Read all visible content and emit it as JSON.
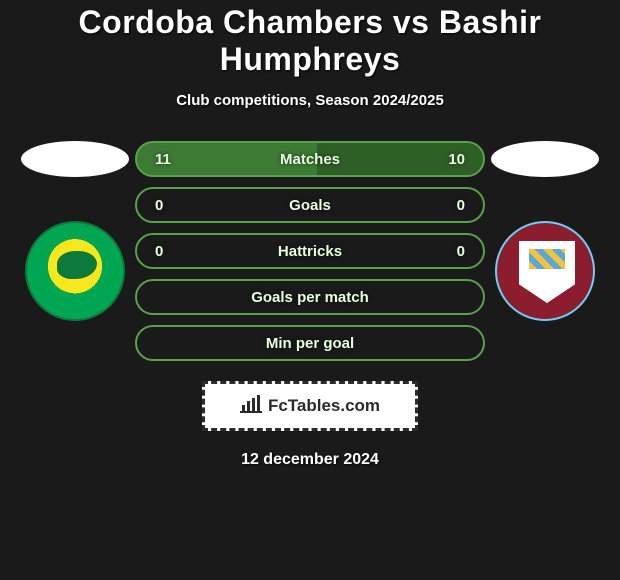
{
  "title": "Cordoba Chambers vs Bashir Humphreys",
  "subtitle": "Club competitions, Season 2024/2025",
  "date": "12 december 2024",
  "attribution": "FcTables.com",
  "colors": {
    "background": "#1a1a1a",
    "text": "#ffffff",
    "bar_text": "#e8ffe0",
    "bar_border": "#58a24a",
    "bar_fill_left": "#3d7a34",
    "bar_fill_right": "#2e5f27",
    "logo_bg": "#ffffff",
    "logo_border": "#2b2b2b"
  },
  "typography": {
    "title_fontsize": 32,
    "title_weight": 900,
    "subtitle_fontsize": 15,
    "bar_fontsize": 15,
    "date_fontsize": 16
  },
  "bars": [
    {
      "label": "Matches",
      "left": "11",
      "right": "10",
      "left_pct": 52,
      "right_pct": 48
    },
    {
      "label": "Goals",
      "left": "0",
      "right": "0",
      "left_pct": 0,
      "right_pct": 0
    },
    {
      "label": "Hattricks",
      "left": "0",
      "right": "0",
      "left_pct": 0,
      "right_pct": 0
    },
    {
      "label": "Goals per match",
      "left": "",
      "right": "",
      "left_pct": 0,
      "right_pct": 0
    },
    {
      "label": "Min per goal",
      "left": "",
      "right": "",
      "left_pct": 0,
      "right_pct": 0
    }
  ],
  "teams": {
    "left": {
      "name": "Norwich City-style crest",
      "primary": "#00a651",
      "secondary": "#f8e71c"
    },
    "right": {
      "name": "Burnley-style crest",
      "primary": "#8c1d2f",
      "secondary": "#6ccff6"
    }
  }
}
